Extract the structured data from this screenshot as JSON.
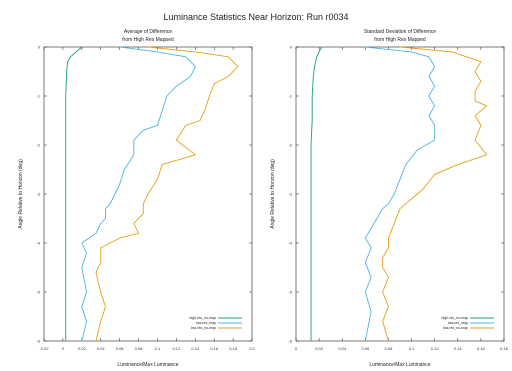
{
  "figure": {
    "title": "Luminance Statistics Near Horizon: Run r0034"
  },
  "chart_data": [
    {
      "type": "line",
      "title": "Average of Difference\nfrom High Res Mapped",
      "xlabel": "Luminance/Max Luminance",
      "ylabel": "Angle Relative to Horizon (deg)",
      "xlim": [
        -0.02,
        0.2
      ],
      "ylim": [
        -6,
        0
      ],
      "xticks": [
        "-0.02",
        "0",
        "0.02",
        "0.04",
        "0.06",
        "0.08",
        "0.1",
        "0.12",
        "0.14",
        "0.16",
        "0.18",
        "0.2"
      ],
      "yticks": [
        "0",
        "-1",
        "-2",
        "-3",
        "-4",
        "-5",
        "-6"
      ],
      "grid": false,
      "legend": "bottom-right",
      "series": [
        {
          "name": "high-res_no-map",
          "color": "#1a9e77",
          "x": [
            0.02,
            0.008,
            0.005,
            0.004,
            0.003,
            0.003,
            0.003,
            0.003,
            0.003,
            0.003,
            0.003,
            0.003,
            0.003,
            0.003,
            0.003
          ],
          "y": [
            0,
            -0.2,
            -0.3,
            -0.5,
            -1.0,
            -1.5,
            -2.0,
            -2.5,
            -3.0,
            -3.5,
            -4.0,
            -4.5,
            -5.0,
            -5.5,
            -6.0
          ]
        },
        {
          "name": "low-res_map",
          "color": "#4db3e6",
          "x": [
            0.06,
            0.1,
            0.13,
            0.14,
            0.135,
            0.12,
            0.11,
            0.105,
            0.1,
            0.085,
            0.075,
            0.075,
            0.065,
            0.06,
            0.055,
            0.05,
            0.045,
            0.045,
            0.04,
            0.035,
            0.02,
            0.025,
            0.02,
            0.025,
            0.02,
            0.025,
            0.02
          ],
          "y": [
            0,
            -0.1,
            -0.2,
            -0.4,
            -0.6,
            -0.8,
            -1.0,
            -1.3,
            -1.6,
            -1.7,
            -1.9,
            -2.2,
            -2.5,
            -2.8,
            -3.0,
            -3.2,
            -3.3,
            -3.5,
            -3.6,
            -3.8,
            -4.0,
            -4.2,
            -4.5,
            -5.0,
            -5.3,
            -5.6,
            -6.0
          ]
        },
        {
          "name": "low-res_no-map",
          "color": "#e6a117",
          "x": [
            0.09,
            0.14,
            0.175,
            0.185,
            0.175,
            0.16,
            0.155,
            0.15,
            0.145,
            0.13,
            0.12,
            0.14,
            0.105,
            0.1,
            0.09,
            0.085,
            0.085,
            0.075,
            0.08,
            0.06,
            0.05,
            0.04,
            0.04,
            0.035,
            0.04,
            0.045,
            0.04,
            0.035
          ],
          "y": [
            0,
            -0.1,
            -0.2,
            -0.4,
            -0.6,
            -0.75,
            -1.0,
            -1.3,
            -1.5,
            -1.6,
            -1.9,
            -2.2,
            -2.4,
            -2.7,
            -3.0,
            -3.2,
            -3.4,
            -3.6,
            -3.8,
            -3.9,
            -4.0,
            -4.1,
            -4.4,
            -4.6,
            -5.0,
            -5.3,
            -5.6,
            -6.0
          ]
        }
      ]
    },
    {
      "type": "line",
      "title": "Standard Deviation of Difference\nfrom High Res Mapped",
      "xlabel": "Luminance/Max Luminance",
      "ylabel": "Angle Relative to Horizon (deg)",
      "xlim": [
        0,
        0.18
      ],
      "ylim": [
        -6,
        0
      ],
      "xticks": [
        "0",
        "0.02",
        "0.04",
        "0.06",
        "0.08",
        "0.1",
        "0.12",
        "0.14",
        "0.16",
        "0.18"
      ],
      "yticks": [
        "0",
        "-1",
        "-2",
        "-3",
        "-4",
        "-5",
        "-6"
      ],
      "grid": false,
      "legend": "bottom-right",
      "series": [
        {
          "name": "high-res_no-map",
          "color": "#1a9e77",
          "x": [
            0.022,
            0.018,
            0.016,
            0.015,
            0.014,
            0.014,
            0.013,
            0.013,
            0.013,
            0.013,
            0.013,
            0.013,
            0.013
          ],
          "y": [
            0,
            -0.2,
            -0.4,
            -0.6,
            -1.0,
            -1.5,
            -2.0,
            -2.5,
            -3.0,
            -3.5,
            -4.0,
            -5.0,
            -6.0
          ]
        },
        {
          "name": "low-res_map",
          "color": "#4db3e6",
          "x": [
            0.06,
            0.1,
            0.115,
            0.12,
            0.115,
            0.12,
            0.115,
            0.12,
            0.115,
            0.12,
            0.12,
            0.105,
            0.095,
            0.09,
            0.085,
            0.08,
            0.075,
            0.07,
            0.065,
            0.06,
            0.065,
            0.06,
            0.065,
            0.06,
            0.065,
            0.06
          ],
          "y": [
            0,
            -0.1,
            -0.2,
            -0.4,
            -0.6,
            -0.8,
            -1.0,
            -1.2,
            -1.4,
            -1.6,
            -1.9,
            -2.1,
            -2.4,
            -2.7,
            -3.0,
            -3.2,
            -3.3,
            -3.5,
            -3.7,
            -3.9,
            -4.1,
            -4.4,
            -4.7,
            -5.0,
            -5.4,
            -6.0
          ]
        },
        {
          "name": "low-res_no-map",
          "color": "#e6a117",
          "x": [
            0.09,
            0.135,
            0.16,
            0.155,
            0.16,
            0.155,
            0.155,
            0.165,
            0.155,
            0.16,
            0.155,
            0.165,
            0.14,
            0.12,
            0.11,
            0.1,
            0.09,
            0.085,
            0.08,
            0.08,
            0.075,
            0.075,
            0.08,
            0.075,
            0.08,
            0.075,
            0.08
          ],
          "y": [
            0,
            -0.1,
            -0.3,
            -0.5,
            -0.7,
            -0.9,
            -1.1,
            -1.2,
            -1.4,
            -1.6,
            -1.9,
            -2.2,
            -2.4,
            -2.6,
            -2.9,
            -3.1,
            -3.3,
            -3.6,
            -3.9,
            -4.1,
            -4.3,
            -4.5,
            -4.7,
            -5.0,
            -5.3,
            -5.6,
            -6.0
          ]
        }
      ]
    }
  ]
}
